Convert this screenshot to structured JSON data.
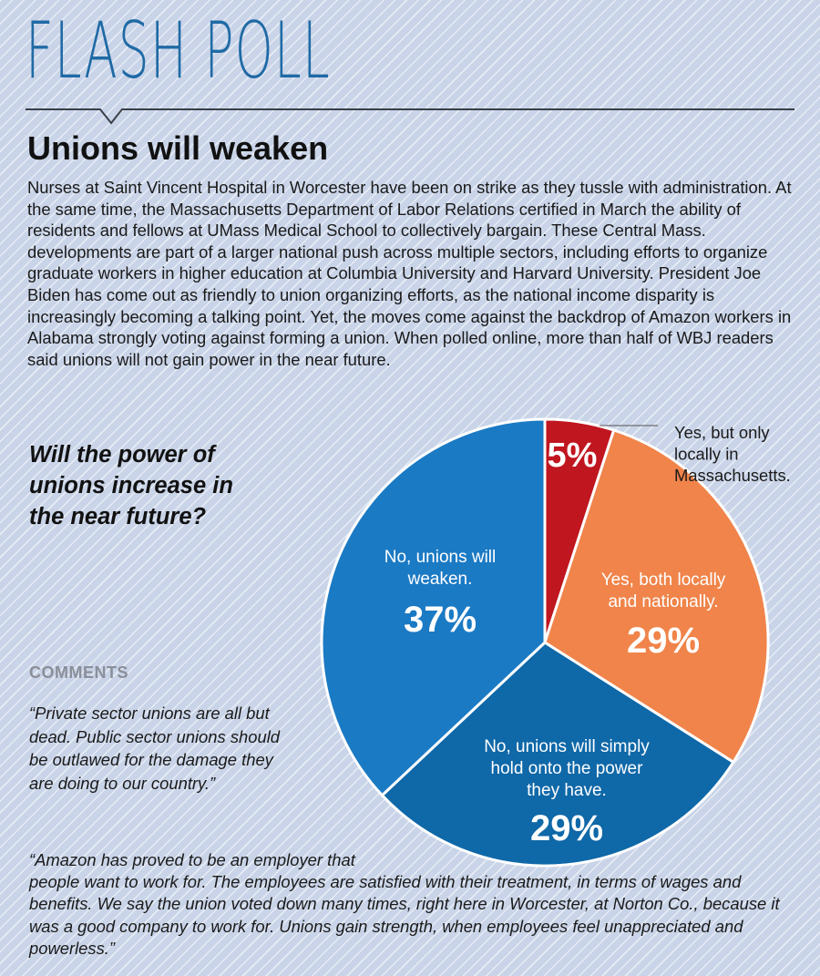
{
  "header": {
    "title": "FLASH POLL",
    "headline": "Unions will weaken",
    "intro": "Nurses at Saint Vincent Hospital in Worcester have been on strike as they tussle with administration. At the same time, the Massachusetts Department of Labor Relations certified in March the ability of residents and fellows at UMass Medical School to collectively bargain. These Central Mass. developments are part of a larger national push across multiple sectors, including efforts to organize graduate workers in higher education at Columbia University and Harvard University. President Joe Biden has come out as friendly to union organizing efforts, as the national income disparity is increasingly becoming a talking point. Yet, the moves come against the backdrop of Amazon workers in Alabama strongly voting against forming a union. When polled online, more than half of WBJ readers said unions will not gain power in the near future."
  },
  "question": "Will the power of unions increase in the near future?",
  "comments": {
    "label": "COMMENTS",
    "comment1": "“Private sector unions are all but dead. Public sector unions should be outlawed for the damage they are doing to our country.”",
    "comment2_line1": "“Amazon has proved to be an employer that",
    "comment2_rest": "people want to work for. The employees are satisfied with their treatment, in terms of wages and benefits. We say the union voted down many times, right here in Worcester, at Norton Co., because it was a good company to work for. Unions gain strength, when employees feel unappreciated and powerless.”"
  },
  "colors": {
    "title_blue": "#1f6aa5",
    "rule": "#3a3f48",
    "text": "#1a1a1a",
    "comments_gray": "#8a8f99",
    "background": "#c9d4e8"
  },
  "chart_data": {
    "type": "pie",
    "title": "",
    "unit": "%",
    "slices": [
      {
        "label": "Yes, but only locally in Massachusetts.",
        "value": 5,
        "display": "5%",
        "color": "#c0161f"
      },
      {
        "label": "Yes, both locally and nationally.",
        "value": 29,
        "display": "29%",
        "color": "#f0844a"
      },
      {
        "label": "No, unions will simply hold onto the power they have.",
        "value": 29,
        "display": "29%",
        "color": "#0f68a8"
      },
      {
        "label": "No, unions will weaken.",
        "value": 37,
        "display": "37%",
        "color": "#1b7ac4"
      }
    ]
  }
}
